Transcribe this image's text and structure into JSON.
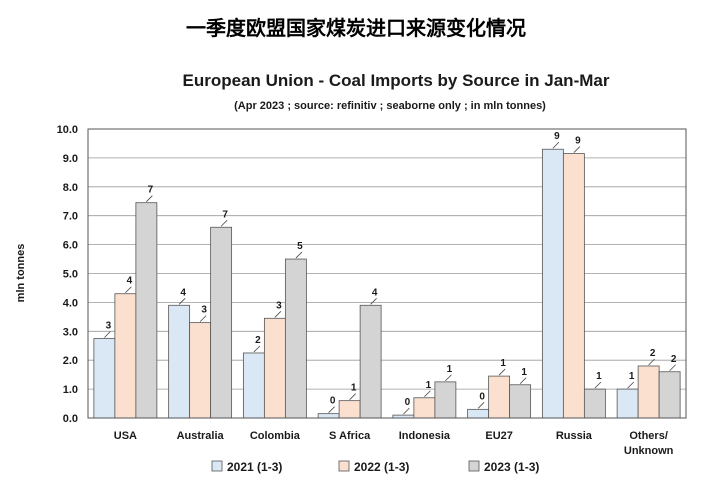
{
  "page_title_cn": "一季度欧盟国家煤炭进口来源变化情况",
  "chart_data": {
    "type": "bar",
    "title": "European Union - Coal Imports by Source in Jan-Mar",
    "subtitle": "(Apr 2023 ; source: refinitiv ; seaborne only ; in mln tonnes)",
    "ylabel": "mln tonnes",
    "xlabel": "",
    "ylim": [
      0,
      10
    ],
    "yticks": [
      "0.0",
      "1.0",
      "2.0",
      "3.0",
      "4.0",
      "5.0",
      "6.0",
      "7.0",
      "8.0",
      "9.0",
      "10.0"
    ],
    "grid": true,
    "legend_position": "bottom",
    "categories": [
      "USA",
      "Australia",
      "Colombia",
      "S Africa",
      "Indonesia",
      "EU27",
      "Russia",
      "Others/\nUnknown"
    ],
    "series": [
      {
        "name": "2021 (1-3)",
        "color": "#dae8f5",
        "values": [
          2.75,
          3.9,
          2.25,
          0.15,
          0.1,
          0.3,
          9.3,
          1.0
        ],
        "labels": [
          "3",
          "4",
          "2",
          "0",
          "0",
          "0",
          "9",
          "1"
        ]
      },
      {
        "name": "2022 (1-3)",
        "color": "#fbe0d0",
        "values": [
          4.3,
          3.3,
          3.45,
          0.6,
          0.7,
          1.45,
          9.15,
          1.8
        ],
        "labels": [
          "4",
          "3",
          "3",
          "1",
          "1",
          "1",
          "9",
          "2"
        ]
      },
      {
        "name": "2023 (1-3)",
        "color": "#d4d4d4",
        "values": [
          7.45,
          6.6,
          5.5,
          3.9,
          1.25,
          1.15,
          1.0,
          1.6
        ],
        "labels": [
          "7",
          "7",
          "5",
          "4",
          "1",
          "1",
          "1",
          "2"
        ]
      }
    ]
  }
}
